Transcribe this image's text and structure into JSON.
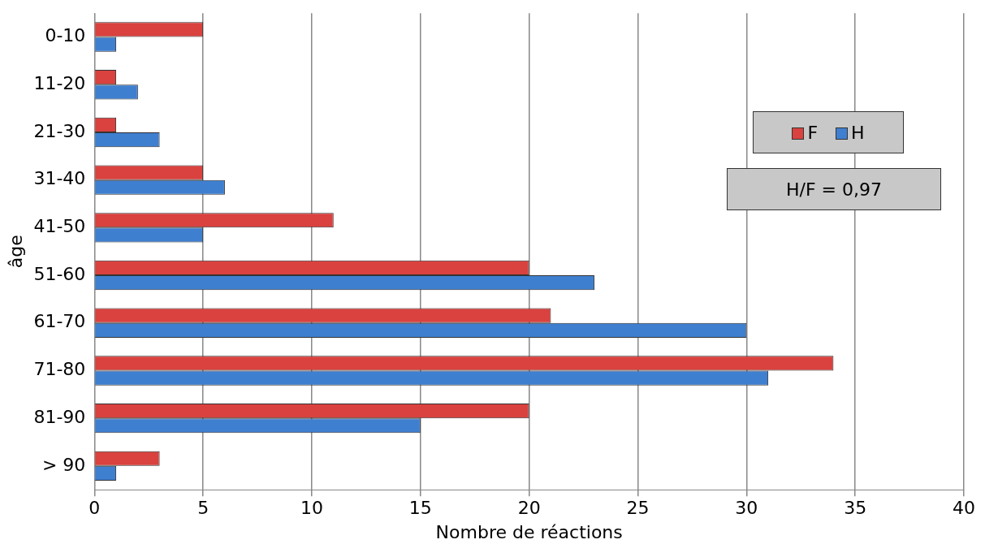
{
  "chart_data": {
    "type": "bar",
    "orientation": "horizontal",
    "xlabel": "Nombre de réactions",
    "ylabel": "âge",
    "categories": [
      "0-10",
      "11-20",
      "21-30",
      "31-40",
      "41-50",
      "51-60",
      "61-70",
      "71-80",
      "81-90",
      "> 90"
    ],
    "series": [
      {
        "name": "F",
        "color": "#d9423f",
        "values": [
          5,
          1,
          1,
          5,
          11,
          20,
          21,
          34,
          20,
          3
        ]
      },
      {
        "name": "H",
        "color": "#3f7fd0",
        "values": [
          1,
          2,
          3,
          6,
          5,
          23,
          30,
          31,
          15,
          1
        ]
      }
    ],
    "xlim": [
      0,
      40
    ],
    "xticks": [
      0,
      5,
      10,
      15,
      20,
      25,
      30,
      35,
      40
    ],
    "grid": "x",
    "legend": "top right",
    "annotations": [
      "H/F = 0,97"
    ]
  }
}
